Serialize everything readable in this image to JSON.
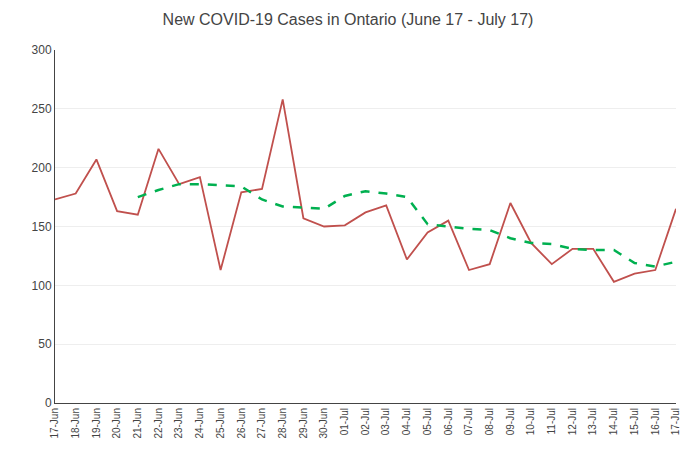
{
  "chart_data": {
    "type": "line",
    "title": "New COVID-19 Cases in Ontario (June 17 - July 17)",
    "categories": [
      "17-Jun",
      "18-Jun",
      "19-Jun",
      "20-Jun",
      "21-Jun",
      "22-Jun",
      "23-Jun",
      "24-Jun",
      "25-Jun",
      "26-Jun",
      "27-Jun",
      "28-Jun",
      "29-Jun",
      "30-Jun",
      "01-Jul",
      "02-Jul",
      "03-Jul",
      "04-Jul",
      "05-Jul",
      "06-Jul",
      "07-Jul",
      "08-Jul",
      "09-Jul",
      "10-Jul",
      "11-Jul",
      "12-Jul",
      "13-Jul",
      "14-Jul",
      "15-Jul",
      "16-Jul",
      "17-Jul"
    ],
    "series": [
      {
        "color": "#c0504d",
        "line_style": "solid",
        "values": [
          173,
          178,
          207,
          163,
          160,
          216,
          186,
          192,
          113,
          179,
          182,
          258,
          157,
          150,
          151,
          162,
          168,
          122,
          145,
          155,
          113,
          118,
          170,
          136,
          118,
          131,
          131,
          103,
          110,
          113,
          165
        ]
      },
      {
        "color": "#00b050",
        "line_style": "dashed",
        "values": [
          null,
          null,
          null,
          null,
          175,
          181,
          186,
          186,
          185,
          184,
          173,
          167,
          166,
          165,
          176,
          180,
          178,
          175,
          152,
          150,
          148,
          147,
          140,
          136,
          135,
          131,
          130,
          130,
          119,
          116,
          120
        ]
      }
    ],
    "ylim": [
      0,
      300
    ],
    "yticks": [
      0,
      50,
      100,
      150,
      200,
      250,
      300
    ],
    "grid": true
  }
}
